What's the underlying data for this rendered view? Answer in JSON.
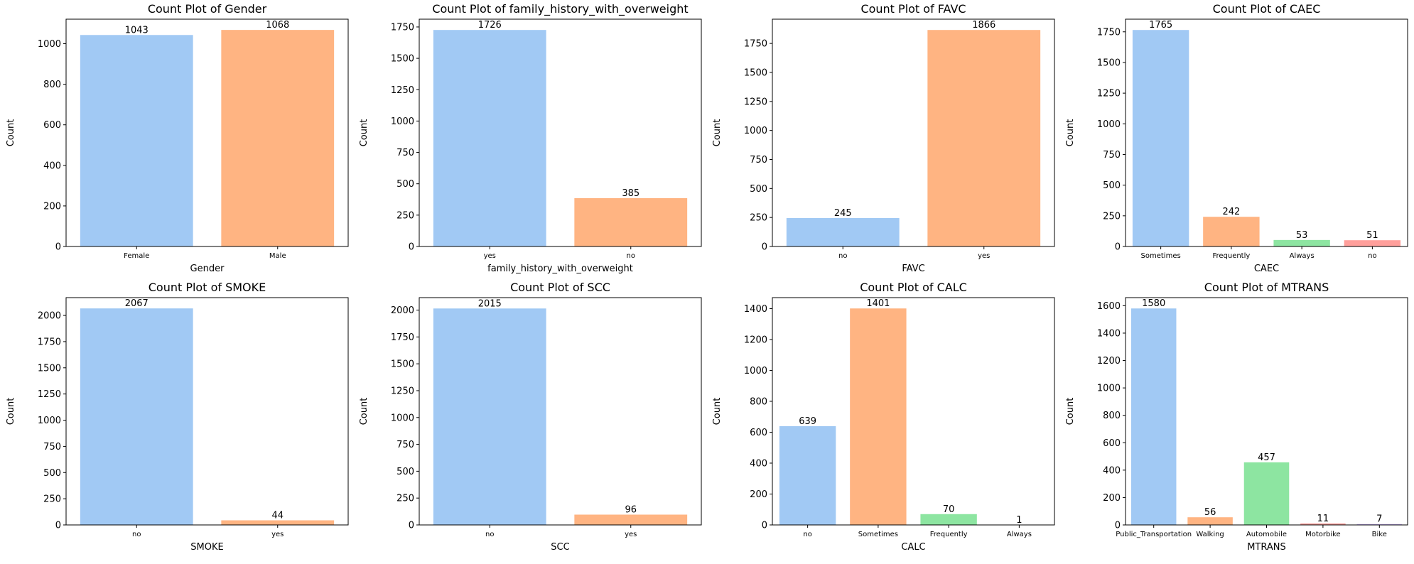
{
  "palette": [
    "#a1c9f4",
    "#ffb482",
    "#8de5a1",
    "#ff9f9b",
    "#d0bbff"
  ],
  "chart_data": [
    {
      "type": "bar",
      "title": "Count Plot of Gender",
      "xlabel": "Gender",
      "ylabel": "Count",
      "categories": [
        "Female",
        "Male"
      ],
      "values": [
        1043,
        1068
      ],
      "ylim": [
        0,
        1121
      ],
      "yticks": [
        0,
        200,
        400,
        600,
        800,
        1000
      ]
    },
    {
      "type": "bar",
      "title": "Count Plot of family_history_with_overweight",
      "xlabel": "family_history_with_overweight",
      "ylabel": "Count",
      "categories": [
        "yes",
        "no"
      ],
      "values": [
        1726,
        385
      ],
      "ylim": [
        0,
        1812
      ],
      "yticks": [
        0,
        250,
        500,
        750,
        1000,
        1250,
        1500,
        1750
      ]
    },
    {
      "type": "bar",
      "title": "Count Plot of FAVC",
      "xlabel": "FAVC",
      "ylabel": "Count",
      "categories": [
        "no",
        "yes"
      ],
      "values": [
        245,
        1866
      ],
      "ylim": [
        0,
        1959
      ],
      "yticks": [
        0,
        250,
        500,
        750,
        1000,
        1250,
        1500,
        1750
      ]
    },
    {
      "type": "bar",
      "title": "Count Plot of CAEC",
      "xlabel": "CAEC",
      "ylabel": "Count",
      "categories": [
        "Sometimes",
        "Frequently",
        "Always",
        "no"
      ],
      "values": [
        1765,
        242,
        53,
        51
      ],
      "ylim": [
        0,
        1853
      ],
      "yticks": [
        0,
        250,
        500,
        750,
        1000,
        1250,
        1500,
        1750
      ]
    },
    {
      "type": "bar",
      "title": "Count Plot of SMOKE",
      "xlabel": "SMOKE",
      "ylabel": "Count",
      "categories": [
        "no",
        "yes"
      ],
      "values": [
        2067,
        44
      ],
      "ylim": [
        0,
        2170
      ],
      "yticks": [
        0,
        250,
        500,
        750,
        1000,
        1250,
        1500,
        1750,
        2000
      ]
    },
    {
      "type": "bar",
      "title": "Count Plot of SCC",
      "xlabel": "SCC",
      "ylabel": "Count",
      "categories": [
        "no",
        "yes"
      ],
      "values": [
        2015,
        96
      ],
      "ylim": [
        0,
        2116
      ],
      "yticks": [
        0,
        250,
        500,
        750,
        1000,
        1250,
        1500,
        1750,
        2000
      ]
    },
    {
      "type": "bar",
      "title": "Count Plot of CALC",
      "xlabel": "CALC",
      "ylabel": "Count",
      "categories": [
        "no",
        "Sometimes",
        "Frequently",
        "Always"
      ],
      "values": [
        639,
        1401,
        70,
        1
      ],
      "ylim": [
        0,
        1471
      ],
      "yticks": [
        0,
        200,
        400,
        600,
        800,
        1000,
        1200,
        1400
      ]
    },
    {
      "type": "bar",
      "title": "Count Plot of MTRANS",
      "xlabel": "MTRANS",
      "ylabel": "Count",
      "categories": [
        "Public_Transportation",
        "Walking",
        "Automobile",
        "Motorbike",
        "Bike"
      ],
      "values": [
        1580,
        56,
        457,
        11,
        7
      ],
      "ylim": [
        0,
        1659
      ],
      "yticks": [
        0,
        200,
        400,
        600,
        800,
        1000,
        1200,
        1400,
        1600
      ]
    }
  ]
}
